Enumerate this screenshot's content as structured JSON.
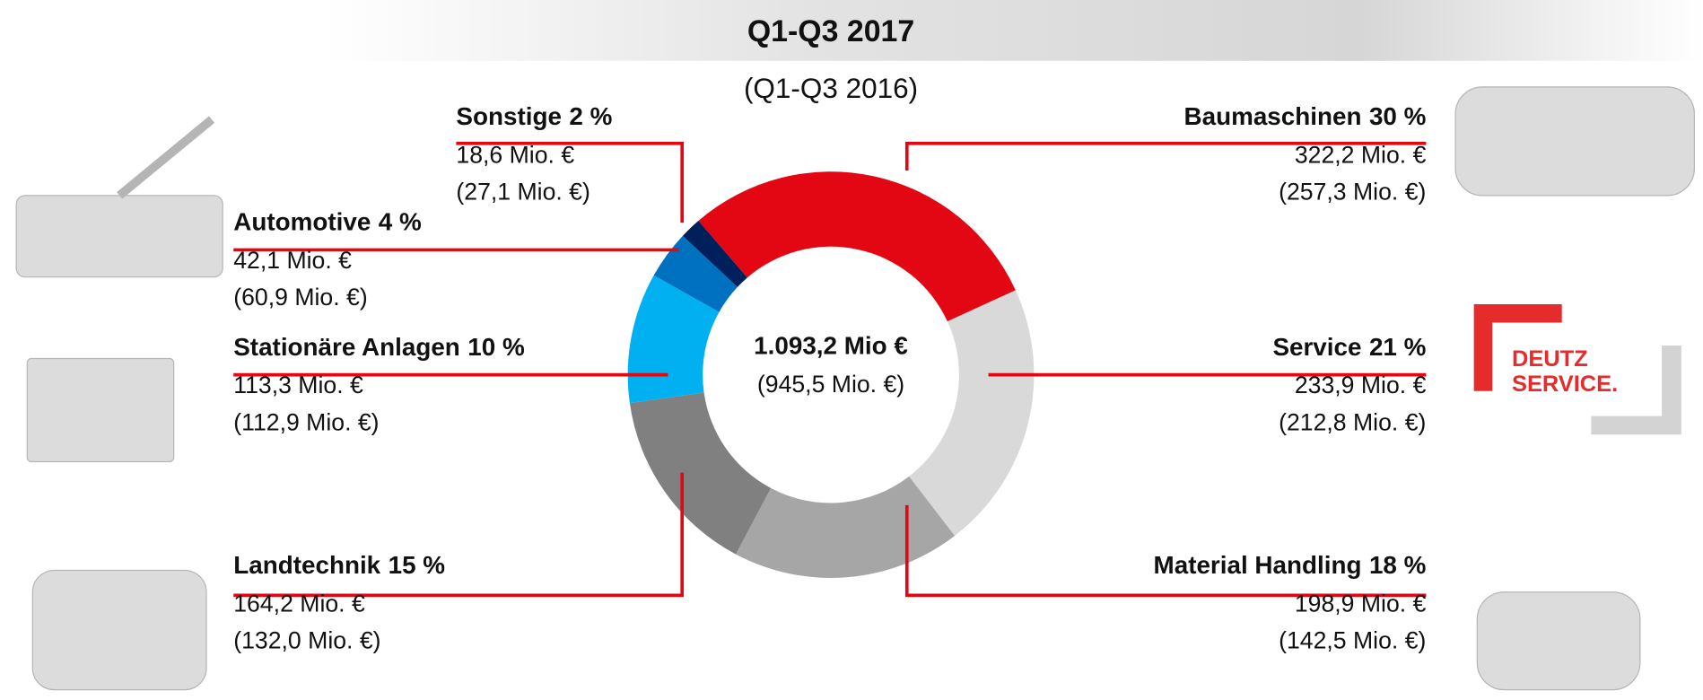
{
  "chart_data": {
    "type": "donut",
    "title": "Q1-Q3 2017",
    "subtitle": "(Q1-Q3 2016)",
    "total_label": "1.093,2 Mio €",
    "total_prior_label": "(945,5 Mio. €)",
    "categories": [
      "Baumaschinen",
      "Service",
      "Material Handling",
      "Landtechnik",
      "Stationäre Anlagen",
      "Automotive",
      "Sonstige"
    ],
    "share_labels": [
      "30 %",
      "21 %",
      "18 %",
      "15 %",
      "10 %",
      "4 %",
      "2 %"
    ],
    "values": [
      322.2,
      233.9,
      198.9,
      164.2,
      113.3,
      42.1,
      18.6
    ],
    "value_labels": [
      "322,2 Mio. €",
      "233,9 Mio. €",
      "198,9 Mio. €",
      "164,2 Mio. €",
      "113,3 Mio. €",
      "42,1 Mio. €",
      "18,6 Mio. €"
    ],
    "prior_labels": [
      "(257,3 Mio. €)",
      "(212,8 Mio. €)",
      "(142,5 Mio. €)",
      "(132,0 Mio. €)",
      "(112,9 Mio. €)",
      "(60,9 Mio. €)",
      "(27,1 Mio. €)"
    ],
    "colors": [
      "#e30613",
      "#d9d9d9",
      "#a6a6a6",
      "#808080",
      "#00b0f0",
      "#0070c0",
      "#00205c"
    ]
  },
  "logo": {
    "line1": "DEUTZ",
    "line2": "SERVICE."
  }
}
